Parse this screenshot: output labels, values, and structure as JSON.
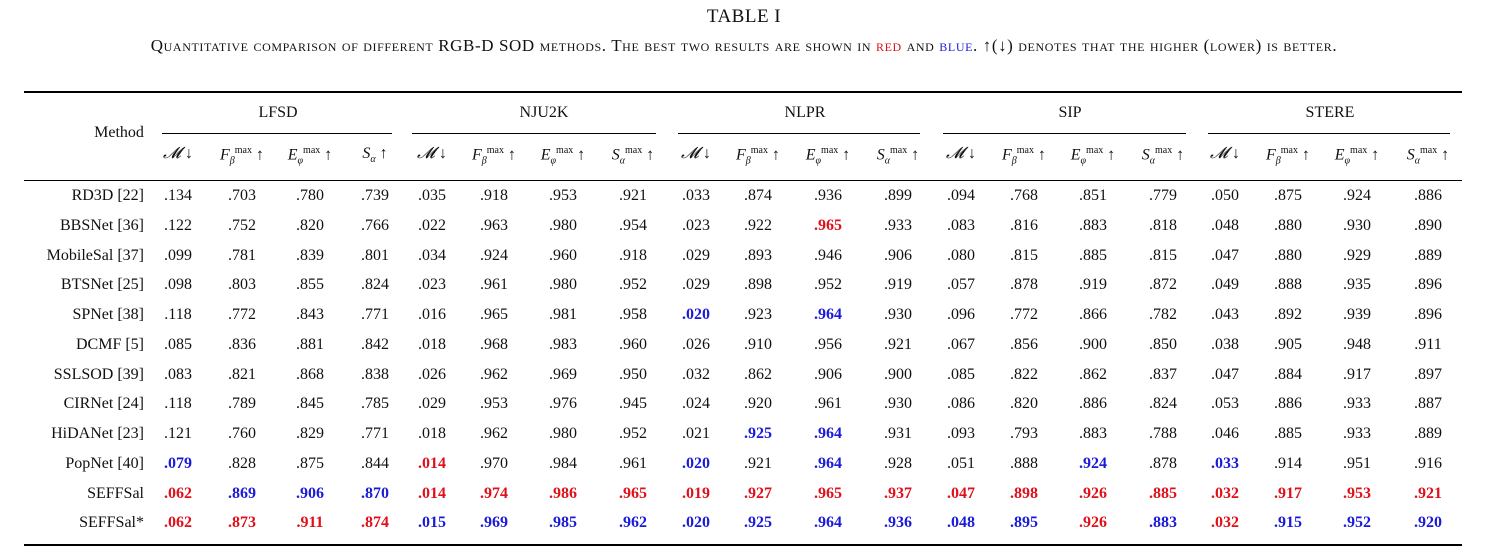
{
  "title": "TABLE I",
  "caption": {
    "before": "Quantitative comparison of different RGB-D SOD methods. The best two results are shown in ",
    "red_word": "red",
    "between": " and ",
    "blue_word": "blue",
    "after": ". ↑(↓) denotes that the higher (lower) is better."
  },
  "colors": {
    "red": "#e0101a",
    "blue": "#1a1ad9"
  },
  "method_header": "Method",
  "datasets": [
    "LFSD",
    "NJU2K",
    "NLPR",
    "SIP",
    "STERE"
  ],
  "rows": [
    {
      "method": "RD3D [22]",
      "values": [
        ".134",
        ".703",
        ".780",
        ".739",
        ".035",
        ".918",
        ".953",
        ".921",
        ".033",
        ".874",
        ".936",
        ".899",
        ".094",
        ".768",
        ".851",
        ".779",
        ".050",
        ".875",
        ".924",
        ".886"
      ],
      "marks": [
        "",
        "",
        "",
        "",
        "",
        "",
        "",
        "",
        "",
        "",
        "",
        "",
        "",
        "",
        "",
        "",
        "",
        "",
        "",
        ""
      ]
    },
    {
      "method": "BBSNet [36]",
      "values": [
        ".122",
        ".752",
        ".820",
        ".766",
        ".022",
        ".963",
        ".980",
        ".954",
        ".023",
        ".922",
        ".965",
        ".933",
        ".083",
        ".816",
        ".883",
        ".818",
        ".048",
        ".880",
        ".930",
        ".890"
      ],
      "marks": [
        "",
        "",
        "",
        "",
        "",
        "",
        "",
        "",
        "",
        "",
        "r",
        "",
        "",
        "",
        "",
        "",
        "",
        "",
        "",
        ""
      ]
    },
    {
      "method": "MobileSal [37]",
      "values": [
        ".099",
        ".781",
        ".839",
        ".801",
        ".034",
        ".924",
        ".960",
        ".918",
        ".029",
        ".893",
        ".946",
        ".906",
        ".080",
        ".815",
        ".885",
        ".815",
        ".047",
        ".880",
        ".929",
        ".889"
      ],
      "marks": [
        "",
        "",
        "",
        "",
        "",
        "",
        "",
        "",
        "",
        "",
        "",
        "",
        "",
        "",
        "",
        "",
        "",
        "",
        "",
        ""
      ]
    },
    {
      "method": "BTSNet [25]",
      "values": [
        ".098",
        ".803",
        ".855",
        ".824",
        ".023",
        ".961",
        ".980",
        ".952",
        ".029",
        ".898",
        ".952",
        ".919",
        ".057",
        ".878",
        ".919",
        ".872",
        ".049",
        ".888",
        ".935",
        ".896"
      ],
      "marks": [
        "",
        "",
        "",
        "",
        "",
        "",
        "",
        "",
        "",
        "",
        "",
        "",
        "",
        "",
        "",
        "",
        "",
        "",
        "",
        ""
      ]
    },
    {
      "method": "SPNet [38]",
      "values": [
        ".118",
        ".772",
        ".843",
        ".771",
        ".016",
        ".965",
        ".981",
        ".958",
        ".020",
        ".923",
        ".964",
        ".930",
        ".096",
        ".772",
        ".866",
        ".782",
        ".043",
        ".892",
        ".939",
        ".896"
      ],
      "marks": [
        "",
        "",
        "",
        "",
        "",
        "",
        "",
        "",
        "b",
        "",
        "b",
        "",
        "",
        "",
        "",
        "",
        "",
        "",
        "",
        ""
      ]
    },
    {
      "method": "DCMF [5]",
      "values": [
        ".085",
        ".836",
        ".881",
        ".842",
        ".018",
        ".968",
        ".983",
        ".960",
        ".026",
        ".910",
        ".956",
        ".921",
        ".067",
        ".856",
        ".900",
        ".850",
        ".038",
        ".905",
        ".948",
        ".911"
      ],
      "marks": [
        "",
        "",
        "",
        "",
        "",
        "",
        "",
        "",
        "",
        "",
        "",
        "",
        "",
        "",
        "",
        "",
        "",
        "",
        "",
        ""
      ]
    },
    {
      "method": "SSLSOD [39]",
      "values": [
        ".083",
        ".821",
        ".868",
        ".838",
        ".026",
        ".962",
        ".969",
        ".950",
        ".032",
        ".862",
        ".906",
        ".900",
        ".085",
        ".822",
        ".862",
        ".837",
        ".047",
        ".884",
        ".917",
        ".897"
      ],
      "marks": [
        "",
        "",
        "",
        "",
        "",
        "",
        "",
        "",
        "",
        "",
        "",
        "",
        "",
        "",
        "",
        "",
        "",
        "",
        "",
        ""
      ]
    },
    {
      "method": "CIRNet [24]",
      "values": [
        ".118",
        ".789",
        ".845",
        ".785",
        ".029",
        ".953",
        ".976",
        ".945",
        ".024",
        ".920",
        ".961",
        ".930",
        ".086",
        ".820",
        ".886",
        ".824",
        ".053",
        ".886",
        ".933",
        ".887"
      ],
      "marks": [
        "",
        "",
        "",
        "",
        "",
        "",
        "",
        "",
        "",
        "",
        "",
        "",
        "",
        "",
        "",
        "",
        "",
        "",
        "",
        ""
      ]
    },
    {
      "method": "HiDANet [23]",
      "values": [
        ".121",
        ".760",
        ".829",
        ".771",
        ".018",
        ".962",
        ".980",
        ".952",
        ".021",
        ".925",
        ".964",
        ".931",
        ".093",
        ".793",
        ".883",
        ".788",
        ".046",
        ".885",
        ".933",
        ".889"
      ],
      "marks": [
        "",
        "",
        "",
        "",
        "",
        "",
        "",
        "",
        "",
        "b",
        "b",
        "",
        "",
        "",
        "",
        "",
        "",
        "",
        "",
        ""
      ]
    },
    {
      "method": "PopNet [40]",
      "values": [
        ".079",
        ".828",
        ".875",
        ".844",
        ".014",
        ".970",
        ".984",
        ".961",
        ".020",
        ".921",
        ".964",
        ".928",
        ".051",
        ".888",
        ".924",
        ".878",
        ".033",
        ".914",
        ".951",
        ".916"
      ],
      "marks": [
        "b",
        "",
        "",
        "",
        "r",
        "",
        "",
        "",
        "b",
        "",
        "b",
        "",
        "",
        "",
        "b",
        "",
        "b",
        "",
        "",
        ""
      ]
    },
    {
      "method": "SEFFSal",
      "values": [
        ".062",
        ".869",
        ".906",
        ".870",
        ".014",
        ".974",
        ".986",
        ".965",
        ".019",
        ".927",
        ".965",
        ".937",
        ".047",
        ".898",
        ".926",
        ".885",
        ".032",
        ".917",
        ".953",
        ".921"
      ],
      "marks": [
        "r",
        "b",
        "b",
        "b",
        "r",
        "r",
        "r",
        "r",
        "r",
        "r",
        "r",
        "r",
        "r",
        "r",
        "r",
        "r",
        "r",
        "r",
        "r",
        "r"
      ]
    },
    {
      "method": "SEFFSal*",
      "values": [
        ".062",
        ".873",
        ".911",
        ".874",
        ".015",
        ".969",
        ".985",
        ".962",
        ".020",
        ".925",
        ".964",
        ".936",
        ".048",
        ".895",
        ".926",
        ".883",
        ".032",
        ".915",
        ".952",
        ".920"
      ],
      "marks": [
        "r",
        "r",
        "r",
        "r",
        "b",
        "b",
        "b",
        "b",
        "b",
        "b",
        "b",
        "b",
        "b",
        "b",
        "r",
        "b",
        "r",
        "b",
        "b",
        "b"
      ]
    }
  ]
}
